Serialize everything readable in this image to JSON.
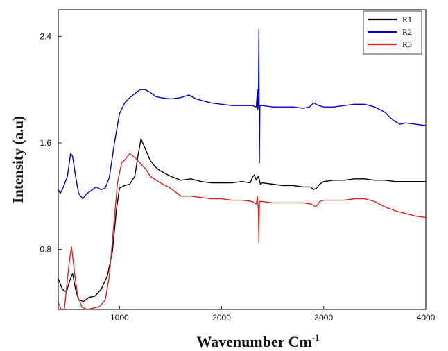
{
  "chart_data": {
    "type": "line",
    "xlabel": "Wavenumber Cm",
    "xlabel_sup": "-1",
    "ylabel": "Intensity (a.u)",
    "xlim": [
      400,
      4000
    ],
    "ylim": [
      0.35,
      2.6
    ],
    "x_ticks": [
      1000,
      2000,
      3000,
      4000
    ],
    "y_ticks": [
      0.8,
      1.6,
      2.4
    ],
    "x_tick_labels": [
      "1000",
      "2000",
      "3000",
      "4000"
    ],
    "y_tick_labels": [
      "0.8",
      "1.6",
      "2.4"
    ],
    "legend_position": "top-right",
    "grid": false,
    "series": [
      {
        "name": "R1",
        "color": "#000000",
        "points": [
          [
            400,
            0.58
          ],
          [
            440,
            0.5
          ],
          [
            480,
            0.48
          ],
          [
            510,
            0.56
          ],
          [
            540,
            0.62
          ],
          [
            570,
            0.5
          ],
          [
            600,
            0.42
          ],
          [
            650,
            0.41
          ],
          [
            700,
            0.44
          ],
          [
            760,
            0.45
          ],
          [
            820,
            0.5
          ],
          [
            880,
            0.6
          ],
          [
            930,
            0.78
          ],
          [
            970,
            1.1
          ],
          [
            1000,
            1.26
          ],
          [
            1050,
            1.28
          ],
          [
            1100,
            1.29
          ],
          [
            1150,
            1.35
          ],
          [
            1180,
            1.5
          ],
          [
            1210,
            1.63
          ],
          [
            1250,
            1.56
          ],
          [
            1300,
            1.47
          ],
          [
            1350,
            1.42
          ],
          [
            1400,
            1.39
          ],
          [
            1500,
            1.35
          ],
          [
            1600,
            1.32
          ],
          [
            1700,
            1.33
          ],
          [
            1800,
            1.31
          ],
          [
            1900,
            1.3
          ],
          [
            2000,
            1.3
          ],
          [
            2100,
            1.3
          ],
          [
            2200,
            1.31
          ],
          [
            2280,
            1.3
          ],
          [
            2300,
            1.34
          ],
          [
            2320,
            1.36
          ],
          [
            2340,
            1.32
          ],
          [
            2360,
            1.35
          ],
          [
            2380,
            1.29
          ],
          [
            2400,
            1.3
          ],
          [
            2500,
            1.29
          ],
          [
            2600,
            1.28
          ],
          [
            2700,
            1.28
          ],
          [
            2800,
            1.27
          ],
          [
            2870,
            1.27
          ],
          [
            2900,
            1.25
          ],
          [
            2930,
            1.26
          ],
          [
            2960,
            1.29
          ],
          [
            3000,
            1.31
          ],
          [
            3100,
            1.32
          ],
          [
            3200,
            1.32
          ],
          [
            3300,
            1.33
          ],
          [
            3400,
            1.33
          ],
          [
            3500,
            1.32
          ],
          [
            3600,
            1.32
          ],
          [
            3700,
            1.31
          ],
          [
            3800,
            1.31
          ],
          [
            3900,
            1.31
          ],
          [
            4000,
            1.31
          ]
        ]
      },
      {
        "name": "R2",
        "color": "#0000cc",
        "points": [
          [
            400,
            1.25
          ],
          [
            420,
            1.22
          ],
          [
            450,
            1.27
          ],
          [
            490,
            1.35
          ],
          [
            520,
            1.52
          ],
          [
            540,
            1.5
          ],
          [
            570,
            1.35
          ],
          [
            600,
            1.22
          ],
          [
            640,
            1.18
          ],
          [
            680,
            1.22
          ],
          [
            720,
            1.24
          ],
          [
            770,
            1.27
          ],
          [
            820,
            1.25
          ],
          [
            860,
            1.26
          ],
          [
            900,
            1.34
          ],
          [
            950,
            1.6
          ],
          [
            1000,
            1.82
          ],
          [
            1050,
            1.9
          ],
          [
            1100,
            1.94
          ],
          [
            1150,
            1.97
          ],
          [
            1200,
            2.0
          ],
          [
            1250,
            2.0
          ],
          [
            1300,
            1.98
          ],
          [
            1350,
            1.95
          ],
          [
            1400,
            1.94
          ],
          [
            1500,
            1.93
          ],
          [
            1600,
            1.94
          ],
          [
            1680,
            1.96
          ],
          [
            1750,
            1.93
          ],
          [
            1800,
            1.92
          ],
          [
            1900,
            1.9
          ],
          [
            2000,
            1.89
          ],
          [
            2100,
            1.88
          ],
          [
            2200,
            1.88
          ],
          [
            2300,
            1.88
          ],
          [
            2340,
            1.87
          ],
          [
            2350,
            2.0
          ],
          [
            2355,
            1.85
          ],
          [
            2360,
            1.9
          ],
          [
            2365,
            2.45
          ],
          [
            2370,
            1.45
          ],
          [
            2375,
            1.88
          ],
          [
            2400,
            1.88
          ],
          [
            2500,
            1.87
          ],
          [
            2600,
            1.87
          ],
          [
            2700,
            1.87
          ],
          [
            2800,
            1.86
          ],
          [
            2860,
            1.87
          ],
          [
            2900,
            1.9
          ],
          [
            2950,
            1.88
          ],
          [
            3000,
            1.87
          ],
          [
            3100,
            1.87
          ],
          [
            3200,
            1.88
          ],
          [
            3300,
            1.89
          ],
          [
            3400,
            1.89
          ],
          [
            3500,
            1.87
          ],
          [
            3600,
            1.83
          ],
          [
            3650,
            1.79
          ],
          [
            3700,
            1.76
          ],
          [
            3750,
            1.74
          ],
          [
            3800,
            1.75
          ],
          [
            3900,
            1.74
          ],
          [
            4000,
            1.73
          ]
        ]
      },
      {
        "name": "R3",
        "color": "#dd2222",
        "points": [
          [
            400,
            0.4
          ],
          [
            430,
            0.32
          ],
          [
            460,
            0.3
          ],
          [
            490,
            0.58
          ],
          [
            510,
            0.72
          ],
          [
            530,
            0.82
          ],
          [
            560,
            0.62
          ],
          [
            590,
            0.45
          ],
          [
            630,
            0.37
          ],
          [
            680,
            0.34
          ],
          [
            740,
            0.36
          ],
          [
            800,
            0.37
          ],
          [
            860,
            0.42
          ],
          [
            900,
            0.6
          ],
          [
            940,
            0.95
          ],
          [
            980,
            1.3
          ],
          [
            1020,
            1.45
          ],
          [
            1060,
            1.48
          ],
          [
            1100,
            1.52
          ],
          [
            1150,
            1.49
          ],
          [
            1200,
            1.45
          ],
          [
            1260,
            1.4
          ],
          [
            1300,
            1.35
          ],
          [
            1400,
            1.3
          ],
          [
            1500,
            1.26
          ],
          [
            1600,
            1.2
          ],
          [
            1700,
            1.2
          ],
          [
            1800,
            1.19
          ],
          [
            1900,
            1.18
          ],
          [
            2000,
            1.18
          ],
          [
            2100,
            1.17
          ],
          [
            2200,
            1.17
          ],
          [
            2300,
            1.16
          ],
          [
            2340,
            1.14
          ],
          [
            2350,
            1.2
          ],
          [
            2360,
            1.1
          ],
          [
            2365,
            0.85
          ],
          [
            2370,
            1.16
          ],
          [
            2400,
            1.16
          ],
          [
            2500,
            1.15
          ],
          [
            2600,
            1.15
          ],
          [
            2700,
            1.15
          ],
          [
            2800,
            1.15
          ],
          [
            2880,
            1.14
          ],
          [
            2920,
            1.12
          ],
          [
            2960,
            1.16
          ],
          [
            3000,
            1.17
          ],
          [
            3100,
            1.17
          ],
          [
            3200,
            1.17
          ],
          [
            3300,
            1.18
          ],
          [
            3400,
            1.18
          ],
          [
            3500,
            1.16
          ],
          [
            3600,
            1.12
          ],
          [
            3700,
            1.09
          ],
          [
            3800,
            1.07
          ],
          [
            3900,
            1.05
          ],
          [
            4000,
            1.04
          ]
        ]
      }
    ]
  }
}
